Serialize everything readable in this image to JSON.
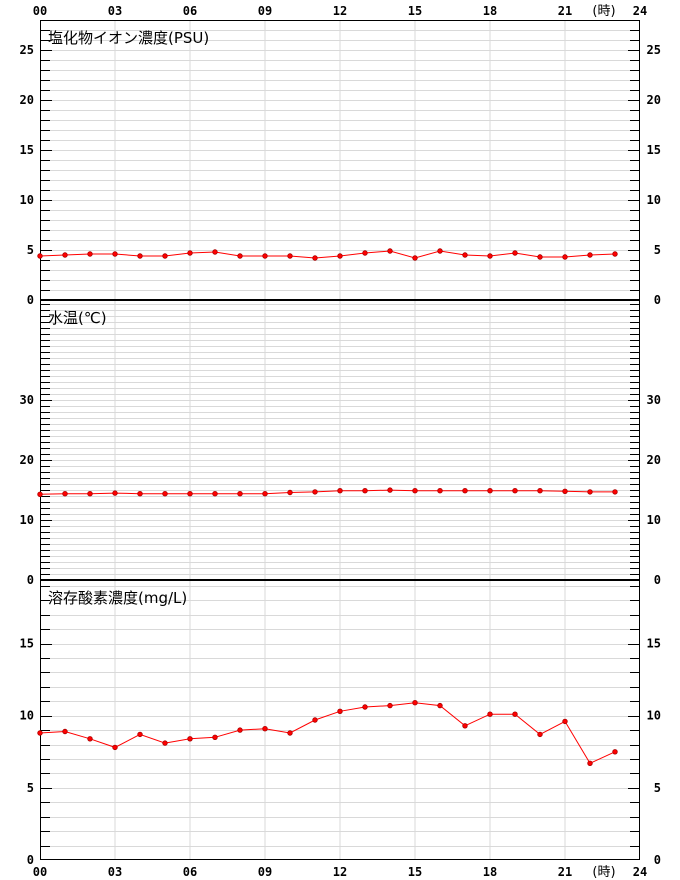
{
  "hour_unit": "(時)",
  "x_ticks": [
    "00",
    "03",
    "06",
    "09",
    "12",
    "15",
    "18",
    "21",
    "24"
  ],
  "colors": {
    "series": "#ff0000",
    "grid": "#d9d9d9",
    "axis": "#000000"
  },
  "chart_data": [
    {
      "type": "line",
      "title": "塩化物イオン濃度(PSU)",
      "x": [
        0,
        1,
        2,
        3,
        4,
        5,
        6,
        7,
        8,
        9,
        10,
        11,
        12,
        13,
        14,
        15,
        16,
        17,
        18,
        19,
        20,
        21,
        22,
        23
      ],
      "values": [
        4.4,
        4.5,
        4.6,
        4.6,
        4.4,
        4.4,
        4.7,
        4.8,
        4.4,
        4.4,
        4.4,
        4.2,
        4.4,
        4.7,
        4.9,
        4.2,
        4.9,
        4.5,
        4.4,
        4.7,
        4.3,
        4.3,
        4.5,
        4.6
      ],
      "xlim": [
        0,
        24
      ],
      "ylim": [
        0,
        28
      ],
      "y_ticks": [
        0,
        5,
        10,
        15,
        20,
        25
      ],
      "grid": true
    },
    {
      "type": "line",
      "title": "水温(℃)",
      "x": [
        0,
        1,
        2,
        3,
        4,
        5,
        6,
        7,
        8,
        9,
        10,
        11,
        12,
        13,
        14,
        15,
        16,
        17,
        18,
        19,
        20,
        21,
        22,
        23
      ],
      "values": [
        14.3,
        14.4,
        14.4,
        14.5,
        14.4,
        14.4,
        14.4,
        14.4,
        14.4,
        14.4,
        14.6,
        14.7,
        14.9,
        14.9,
        15.0,
        14.9,
        14.9,
        14.9,
        14.9,
        14.9,
        14.9,
        14.8,
        14.7,
        14.7
      ],
      "xlim": [
        0,
        24
      ],
      "ylim": [
        0,
        46.7
      ],
      "y_ticks": [
        0,
        10,
        20,
        30
      ],
      "grid": true
    },
    {
      "type": "line",
      "title": "溶存酸素濃度(mg/L)",
      "x": [
        0,
        1,
        2,
        3,
        4,
        5,
        6,
        7,
        8,
        9,
        10,
        11,
        12,
        13,
        14,
        15,
        16,
        17,
        18,
        19,
        20,
        21,
        22,
        23
      ],
      "values": [
        8.8,
        8.9,
        8.4,
        7.8,
        8.7,
        8.1,
        8.4,
        8.5,
        9.0,
        9.1,
        8.8,
        9.7,
        10.3,
        10.6,
        10.7,
        10.9,
        10.7,
        9.3,
        10.1,
        10.1,
        8.7,
        9.6,
        6.7,
        7.5
      ],
      "xlim": [
        0,
        24
      ],
      "ylim": [
        0,
        19.4
      ],
      "y_ticks": [
        0,
        5,
        10,
        15
      ],
      "grid": true
    }
  ]
}
